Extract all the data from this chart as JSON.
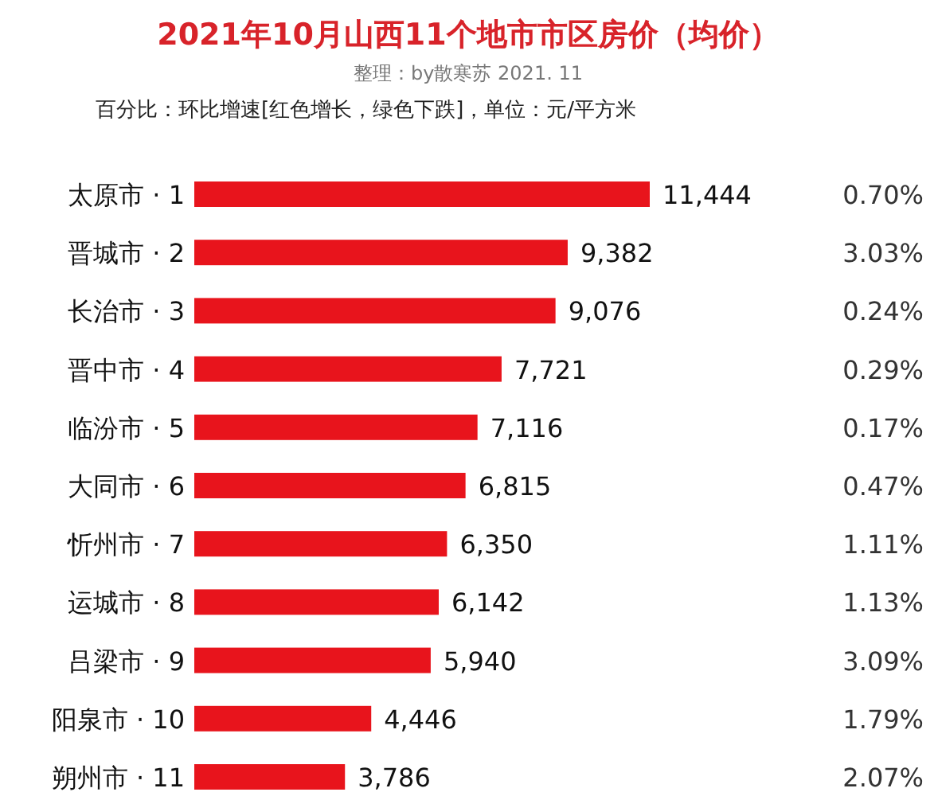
{
  "chart_data": {
    "type": "bar",
    "orientation": "horizontal",
    "title": "2021年10月山西11个地市市区房价（均价）",
    "subtitle": "整理：by散寒苏  2021. 11",
    "categories": [
      "太原市 · 1",
      "晋城市 · 2",
      "长治市 · 3",
      "晋中市 · 4",
      "临汾市 · 5",
      "大同市 · 6",
      "忻州市 · 7",
      "运城市 · 8",
      "吕梁市 · 9",
      "阳泉市 · 10",
      "朔州市 · 11"
    ],
    "series": [
      {
        "color": "#e8141c",
        "values": [
          11444,
          9382,
          9076,
          7721,
          7116,
          6815,
          6350,
          6142,
          5940,
          4446,
          3786
        ],
        "value_labels": [
          "11,444",
          "9,382",
          "9,076",
          "7,721",
          "7,116",
          "6,815",
          "6,350",
          "6,142",
          "5,940",
          "4,446",
          "3,786"
        ]
      }
    ],
    "annotations": [
      "百分比：环比增速[红色增长，绿色下跌]，单位：元/平方米",
      "0.70%",
      "3.03%",
      "0.24%",
      "0.29%",
      "0.17%",
      "0.47%",
      "1.11%",
      "1.13%",
      "3.09%",
      "1.79%",
      "2.07%"
    ]
  }
}
